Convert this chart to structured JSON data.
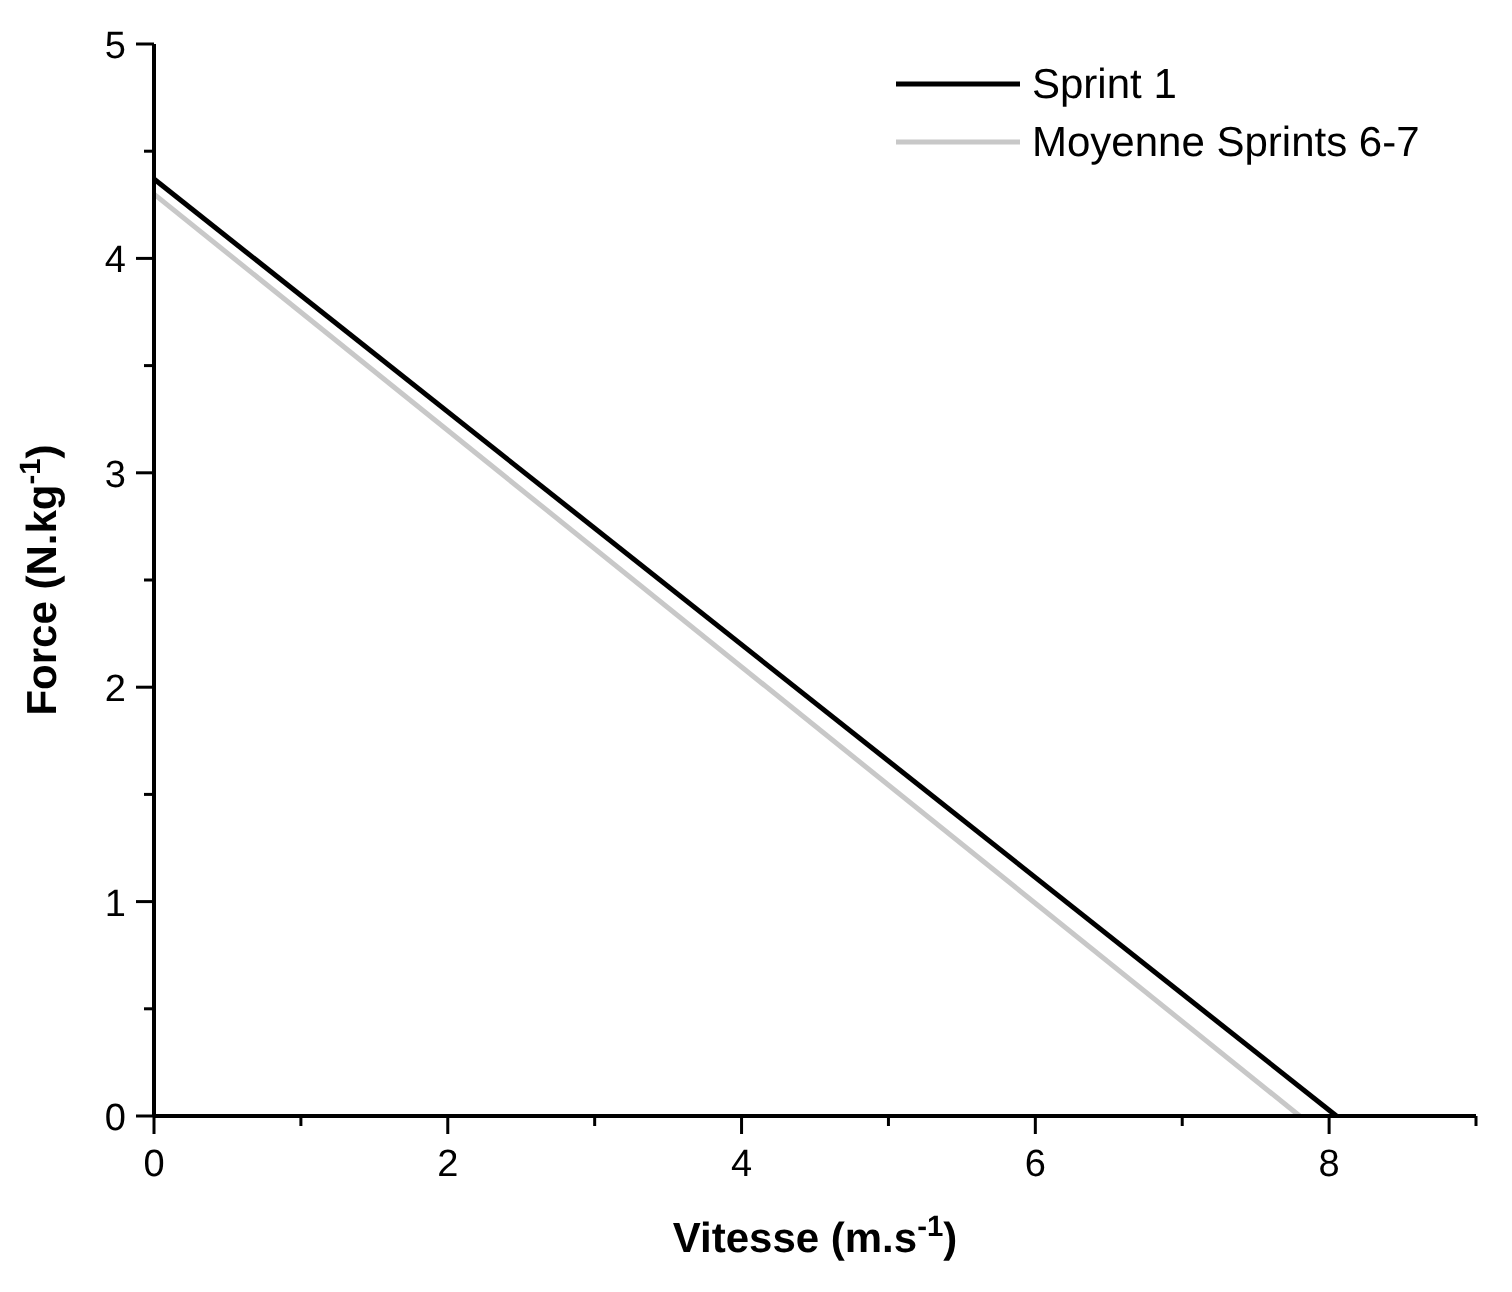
{
  "chart_data": {
    "type": "line",
    "xlabel": "Vitesse (m.s$^{-1}$)",
    "ylabel": "Force (N.kg$^{-1}$)",
    "xlim": [
      0,
      9
    ],
    "ylim": [
      0,
      5
    ],
    "xticks": [
      0,
      {
        "value": 1,
        "label": null
      },
      2,
      {
        "value": 3,
        "label": null
      },
      4,
      {
        "value": 5,
        "label": null
      },
      6,
      {
        "value": 7,
        "label": null
      },
      8,
      {
        "value": 9,
        "label": null
      }
    ],
    "yticks": [
      0,
      {
        "value": 0.5,
        "label": null
      },
      1,
      {
        "value": 1.5,
        "label": null
      },
      2,
      {
        "value": 2.5,
        "label": null
      },
      3,
      {
        "value": 3.5,
        "label": null
      },
      4,
      {
        "value": 4.5,
        "label": null
      },
      5
    ],
    "legend": "top right",
    "grid": false,
    "line_style": "solid",
    "series": [
      {
        "name": "Sprint 1",
        "color": "#000000",
        "x": [
          0,
          8.05
        ],
        "values": [
          4.37,
          0
        ]
      },
      {
        "name": "Moyenne Sprints 6-7",
        "color": "#c8c8c8",
        "x": [
          0,
          7.8
        ],
        "values": [
          4.3,
          0
        ]
      }
    ]
  }
}
